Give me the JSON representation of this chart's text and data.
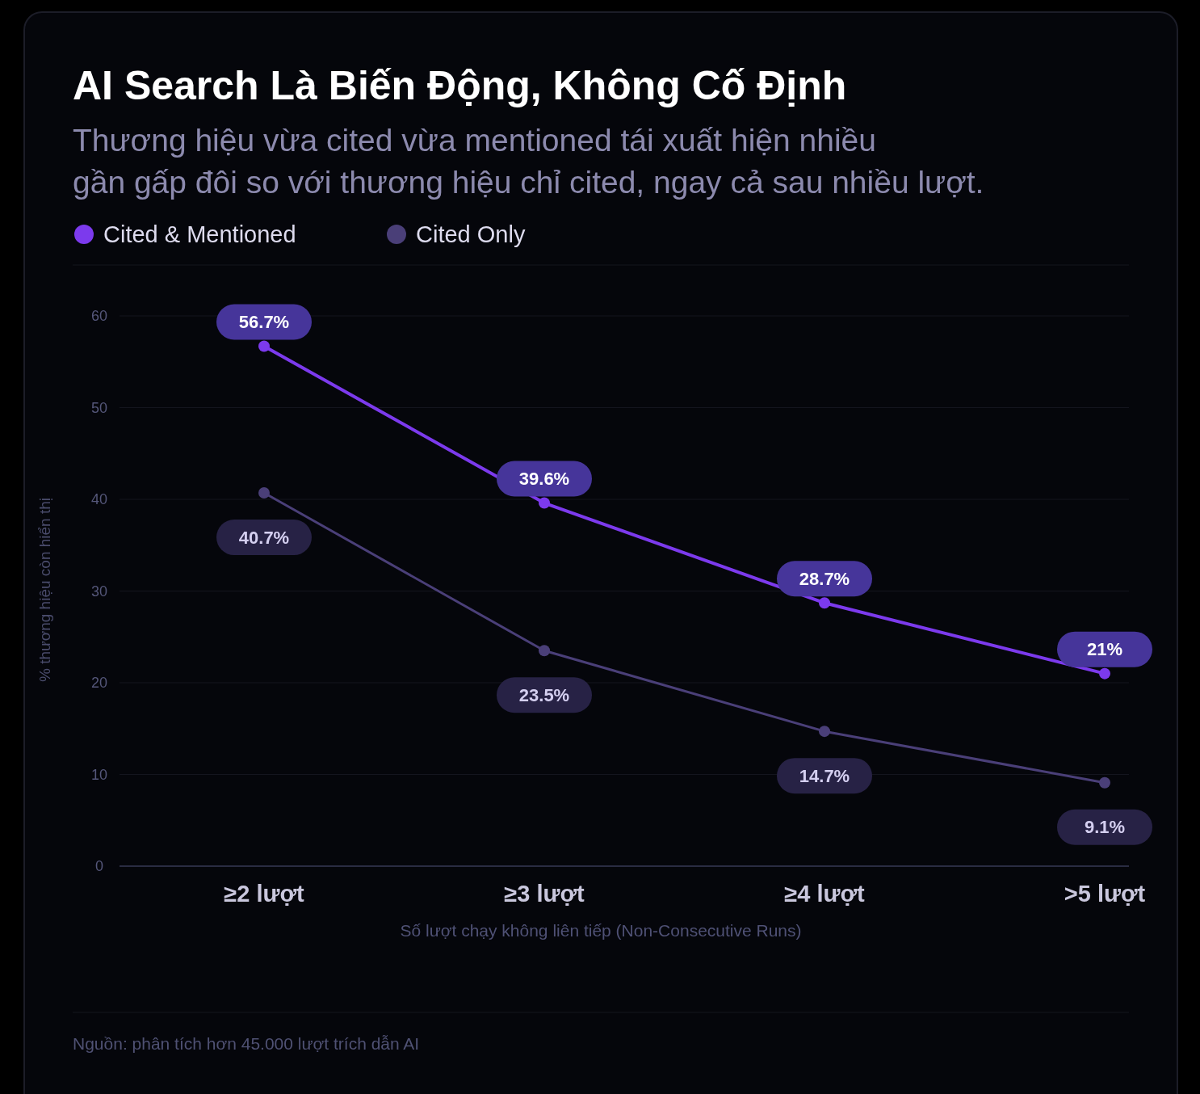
{
  "chart_data": {
    "type": "line",
    "title": "AI Search Là Biến Động, Không Cố Định",
    "subtitle": "Thương hiệu vừa cited vừa mentioned tái xuất hiện nhiều\ngần gấp đôi so với thương hiệu chỉ cited, ngay cả sau nhiều lượt.",
    "xlabel": "Số lượt chạy không liên tiếp (Non-Consecutive Runs)",
    "ylabel": "% thương hiệu còn hiển thị",
    "categories": [
      "≥2 lượt",
      "≥3 lượt",
      "≥4 lượt",
      ">5 lượt"
    ],
    "series": [
      {
        "name": "Cited & Mentioned",
        "color": "#7c3aed",
        "values": [
          56.7,
          39.6,
          28.7,
          21
        ],
        "value_labels": [
          "56.7%",
          "39.6%",
          "28.7%",
          "21%"
        ]
      },
      {
        "name": "Cited Only",
        "color": "#4a3f78",
        "values": [
          40.7,
          23.5,
          14.7,
          9.1
        ],
        "value_labels": [
          "40.7%",
          "23.5%",
          "14.7%",
          "9.1%"
        ]
      }
    ],
    "ylim": [
      0,
      60
    ],
    "yticks": [
      0,
      10,
      20,
      30,
      40,
      50,
      60
    ],
    "grid": "y",
    "legend": "top left",
    "marker": "circle",
    "line_style": "solid",
    "annotations": [
      "Nguồn: phân tích hơn 45.000 lượt trích dẫn AI"
    ]
  }
}
